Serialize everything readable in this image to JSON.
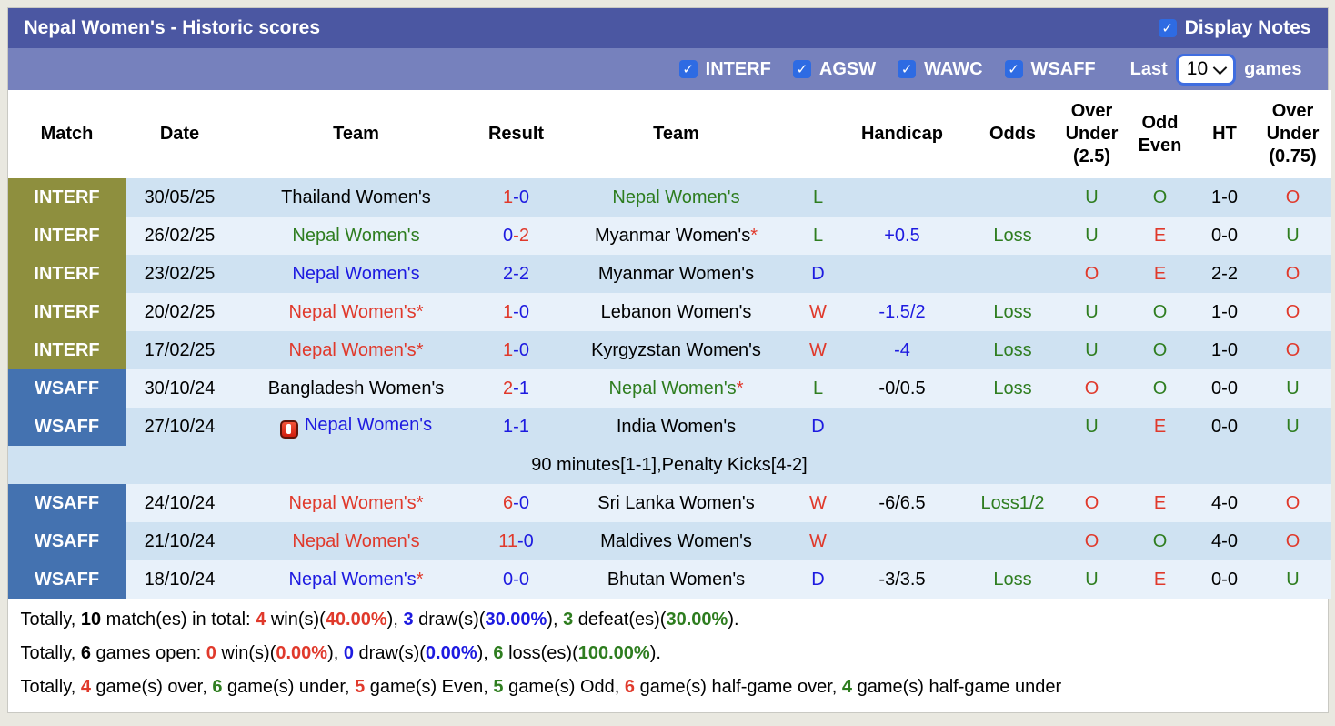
{
  "colors": {
    "title_bar": "#4b57a2",
    "filter_bar": "#7681bd",
    "checkbox_blue": "#2e6be3",
    "badge_interf": "#8e8f3e",
    "badge_wsaff": "#4472b0",
    "row_dark": "#cfe2f2",
    "row_light": "#e8f1fa",
    "text_red": "#e0392b",
    "text_green": "#2e7d1f",
    "text_blue": "#1d1ae0"
  },
  "header": {
    "title": "Nepal Women's - Historic scores",
    "display_notes": "Display Notes"
  },
  "filter_bar": {
    "filters": [
      "INTERF",
      "AGSW",
      "WAWC",
      "WSAFF"
    ],
    "last_label": "Last",
    "last_value": "10",
    "games_label": "games"
  },
  "columns": [
    "Match",
    "Date",
    "Team",
    "Result",
    "Team",
    "",
    "Handicap",
    "Odds",
    "Over Under (2.5)",
    "Odd Even",
    "HT",
    "Over Under (0.75)"
  ],
  "rows": [
    {
      "type": "match",
      "shade": "dark",
      "league": "INTERF",
      "date": "30/05/25",
      "home": {
        "text": "Thailand Women's",
        "color": "black",
        "star": false,
        "icon": false
      },
      "score": [
        {
          "t": "1",
          "c": "red"
        },
        {
          "t": "-0",
          "c": "blue"
        }
      ],
      "away": {
        "text": "Nepal Women's",
        "color": "green",
        "star": false
      },
      "wdl": {
        "t": "L",
        "c": "green"
      },
      "handicap": {
        "t": "",
        "c": "blue"
      },
      "odds": {
        "t": "",
        "c": "green"
      },
      "ou25": {
        "t": "U",
        "c": "green"
      },
      "oddeven": {
        "t": "O",
        "c": "green"
      },
      "ht": "1-0",
      "ou075": {
        "t": "O",
        "c": "red"
      }
    },
    {
      "type": "match",
      "shade": "light",
      "league": "INTERF",
      "date": "26/02/25",
      "home": {
        "text": "Nepal Women's",
        "color": "green",
        "star": false,
        "icon": false
      },
      "score": [
        {
          "t": "0",
          "c": "blue"
        },
        {
          "t": "-2",
          "c": "red"
        }
      ],
      "away": {
        "text": "Myanmar Women's",
        "color": "black",
        "star": true
      },
      "wdl": {
        "t": "L",
        "c": "green"
      },
      "handicap": {
        "t": "+0.5",
        "c": "blue"
      },
      "odds": {
        "t": "Loss",
        "c": "green"
      },
      "ou25": {
        "t": "U",
        "c": "green"
      },
      "oddeven": {
        "t": "E",
        "c": "red"
      },
      "ht": "0-0",
      "ou075": {
        "t": "U",
        "c": "green"
      }
    },
    {
      "type": "match",
      "shade": "dark",
      "league": "INTERF",
      "date": "23/02/25",
      "home": {
        "text": "Nepal Women's",
        "color": "blue",
        "star": false,
        "icon": false
      },
      "score": [
        {
          "t": "2",
          "c": "blue"
        },
        {
          "t": "-2",
          "c": "blue"
        }
      ],
      "away": {
        "text": "Myanmar Women's",
        "color": "black",
        "star": false
      },
      "wdl": {
        "t": "D",
        "c": "blue"
      },
      "handicap": {
        "t": "",
        "c": "blue"
      },
      "odds": {
        "t": "",
        "c": "green"
      },
      "ou25": {
        "t": "O",
        "c": "red"
      },
      "oddeven": {
        "t": "E",
        "c": "red"
      },
      "ht": "2-2",
      "ou075": {
        "t": "O",
        "c": "red"
      }
    },
    {
      "type": "match",
      "shade": "light",
      "league": "INTERF",
      "date": "20/02/25",
      "home": {
        "text": "Nepal Women's",
        "color": "red",
        "star": true,
        "icon": false
      },
      "score": [
        {
          "t": "1",
          "c": "red"
        },
        {
          "t": "-0",
          "c": "blue"
        }
      ],
      "away": {
        "text": "Lebanon Women's",
        "color": "black",
        "star": false
      },
      "wdl": {
        "t": "W",
        "c": "red"
      },
      "handicap": {
        "t": "-1.5/2",
        "c": "blue"
      },
      "odds": {
        "t": "Loss",
        "c": "green"
      },
      "ou25": {
        "t": "U",
        "c": "green"
      },
      "oddeven": {
        "t": "O",
        "c": "green"
      },
      "ht": "1-0",
      "ou075": {
        "t": "O",
        "c": "red"
      }
    },
    {
      "type": "match",
      "shade": "dark",
      "league": "INTERF",
      "date": "17/02/25",
      "home": {
        "text": "Nepal Women's",
        "color": "red",
        "star": true,
        "icon": false
      },
      "score": [
        {
          "t": "1",
          "c": "red"
        },
        {
          "t": "-0",
          "c": "blue"
        }
      ],
      "away": {
        "text": "Kyrgyzstan Women's",
        "color": "black",
        "star": false
      },
      "wdl": {
        "t": "W",
        "c": "red"
      },
      "handicap": {
        "t": "-4",
        "c": "blue"
      },
      "odds": {
        "t": "Loss",
        "c": "green"
      },
      "ou25": {
        "t": "U",
        "c": "green"
      },
      "oddeven": {
        "t": "O",
        "c": "green"
      },
      "ht": "1-0",
      "ou075": {
        "t": "O",
        "c": "red"
      }
    },
    {
      "type": "match",
      "shade": "light",
      "league": "WSAFF",
      "date": "30/10/24",
      "home": {
        "text": "Bangladesh Women's",
        "color": "black",
        "star": false,
        "icon": false
      },
      "score": [
        {
          "t": "2",
          "c": "red"
        },
        {
          "t": "-1",
          "c": "blue"
        }
      ],
      "away": {
        "text": "Nepal Women's",
        "color": "green",
        "star": true
      },
      "wdl": {
        "t": "L",
        "c": "green"
      },
      "handicap": {
        "t": "-0/0.5",
        "c": "black"
      },
      "odds": {
        "t": "Loss",
        "c": "green"
      },
      "ou25": {
        "t": "O",
        "c": "red"
      },
      "oddeven": {
        "t": "O",
        "c": "green"
      },
      "ht": "0-0",
      "ou075": {
        "t": "U",
        "c": "green"
      }
    },
    {
      "type": "match",
      "shade": "dark",
      "league": "WSAFF",
      "date": "27/10/24",
      "home": {
        "text": "Nepal Women's",
        "color": "blue",
        "star": false,
        "icon": true
      },
      "score": [
        {
          "t": "1",
          "c": "blue"
        },
        {
          "t": "-1",
          "c": "blue"
        }
      ],
      "away": {
        "text": "India Women's",
        "color": "black",
        "star": false
      },
      "wdl": {
        "t": "D",
        "c": "blue"
      },
      "handicap": {
        "t": "",
        "c": "black"
      },
      "odds": {
        "t": "",
        "c": "green"
      },
      "ou25": {
        "t": "U",
        "c": "green"
      },
      "oddeven": {
        "t": "E",
        "c": "red"
      },
      "ht": "0-0",
      "ou075": {
        "t": "U",
        "c": "green"
      }
    },
    {
      "type": "note",
      "shade": "dark",
      "text": "90 minutes[1-1],Penalty Kicks[4-2]"
    },
    {
      "type": "match",
      "shade": "light",
      "league": "WSAFF",
      "date": "24/10/24",
      "home": {
        "text": "Nepal Women's",
        "color": "red",
        "star": true,
        "icon": false
      },
      "score": [
        {
          "t": "6",
          "c": "red"
        },
        {
          "t": "-0",
          "c": "blue"
        }
      ],
      "away": {
        "text": "Sri Lanka Women's",
        "color": "black",
        "star": false
      },
      "wdl": {
        "t": "W",
        "c": "red"
      },
      "handicap": {
        "t": "-6/6.5",
        "c": "black"
      },
      "odds": {
        "t": "Loss1/2",
        "c": "green"
      },
      "ou25": {
        "t": "O",
        "c": "red"
      },
      "oddeven": {
        "t": "E",
        "c": "red"
      },
      "ht": "4-0",
      "ou075": {
        "t": "O",
        "c": "red"
      }
    },
    {
      "type": "match",
      "shade": "dark",
      "league": "WSAFF",
      "date": "21/10/24",
      "home": {
        "text": "Nepal Women's",
        "color": "red",
        "star": false,
        "icon": false
      },
      "score": [
        {
          "t": "11",
          "c": "red"
        },
        {
          "t": "-0",
          "c": "blue"
        }
      ],
      "away": {
        "text": "Maldives Women's",
        "color": "black",
        "star": false
      },
      "wdl": {
        "t": "W",
        "c": "red"
      },
      "handicap": {
        "t": "",
        "c": "black"
      },
      "odds": {
        "t": "",
        "c": "green"
      },
      "ou25": {
        "t": "O",
        "c": "red"
      },
      "oddeven": {
        "t": "O",
        "c": "green"
      },
      "ht": "4-0",
      "ou075": {
        "t": "O",
        "c": "red"
      }
    },
    {
      "type": "match",
      "shade": "light",
      "league": "WSAFF",
      "date": "18/10/24",
      "home": {
        "text": "Nepal Women's",
        "color": "blue",
        "star": true,
        "icon": false
      },
      "score": [
        {
          "t": "0",
          "c": "blue"
        },
        {
          "t": "-0",
          "c": "blue"
        }
      ],
      "away": {
        "text": "Bhutan Women's",
        "color": "black",
        "star": false
      },
      "wdl": {
        "t": "D",
        "c": "blue"
      },
      "handicap": {
        "t": "-3/3.5",
        "c": "black"
      },
      "odds": {
        "t": "Loss",
        "c": "green"
      },
      "ou25": {
        "t": "U",
        "c": "green"
      },
      "oddeven": {
        "t": "E",
        "c": "red"
      },
      "ht": "0-0",
      "ou075": {
        "t": "U",
        "c": "green"
      }
    }
  ],
  "footer_lines": [
    [
      {
        "t": "Totally, ",
        "c": "black",
        "b": false
      },
      {
        "t": "10",
        "c": "black",
        "b": true
      },
      {
        "t": " match(es) in total: ",
        "c": "black",
        "b": false
      },
      {
        "t": "4",
        "c": "red",
        "b": true
      },
      {
        "t": " win(s)(",
        "c": "black",
        "b": false
      },
      {
        "t": "40.00%",
        "c": "red",
        "b": true
      },
      {
        "t": "), ",
        "c": "black",
        "b": false
      },
      {
        "t": "3",
        "c": "blue",
        "b": true
      },
      {
        "t": " draw(s)(",
        "c": "black",
        "b": false
      },
      {
        "t": "30.00%",
        "c": "blue",
        "b": true
      },
      {
        "t": "), ",
        "c": "black",
        "b": false
      },
      {
        "t": "3",
        "c": "green",
        "b": true
      },
      {
        "t": " defeat(es)(",
        "c": "black",
        "b": false
      },
      {
        "t": "30.00%",
        "c": "green",
        "b": true
      },
      {
        "t": ").",
        "c": "black",
        "b": false
      }
    ],
    [
      {
        "t": "Totally, ",
        "c": "black",
        "b": false
      },
      {
        "t": "6",
        "c": "black",
        "b": true
      },
      {
        "t": " games open: ",
        "c": "black",
        "b": false
      },
      {
        "t": "0",
        "c": "red",
        "b": true
      },
      {
        "t": " win(s)(",
        "c": "black",
        "b": false
      },
      {
        "t": "0.00%",
        "c": "red",
        "b": true
      },
      {
        "t": "), ",
        "c": "black",
        "b": false
      },
      {
        "t": "0",
        "c": "blue",
        "b": true
      },
      {
        "t": " draw(s)(",
        "c": "black",
        "b": false
      },
      {
        "t": "0.00%",
        "c": "blue",
        "b": true
      },
      {
        "t": "), ",
        "c": "black",
        "b": false
      },
      {
        "t": "6",
        "c": "green",
        "b": true
      },
      {
        "t": " loss(es)(",
        "c": "black",
        "b": false
      },
      {
        "t": "100.00%",
        "c": "green",
        "b": true
      },
      {
        "t": ").",
        "c": "black",
        "b": false
      }
    ],
    [
      {
        "t": "Totally, ",
        "c": "black",
        "b": false
      },
      {
        "t": "4",
        "c": "red",
        "b": true
      },
      {
        "t": " game(s) over, ",
        "c": "black",
        "b": false
      },
      {
        "t": "6",
        "c": "green",
        "b": true
      },
      {
        "t": " game(s) under, ",
        "c": "black",
        "b": false
      },
      {
        "t": "5",
        "c": "red",
        "b": true
      },
      {
        "t": " game(s) Even, ",
        "c": "black",
        "b": false
      },
      {
        "t": "5",
        "c": "green",
        "b": true
      },
      {
        "t": " game(s) Odd, ",
        "c": "black",
        "b": false
      },
      {
        "t": "6",
        "c": "red",
        "b": true
      },
      {
        "t": " game(s) half-game over, ",
        "c": "black",
        "b": false
      },
      {
        "t": "4",
        "c": "green",
        "b": true
      },
      {
        "t": " game(s) half-game under",
        "c": "black",
        "b": false
      }
    ]
  ]
}
